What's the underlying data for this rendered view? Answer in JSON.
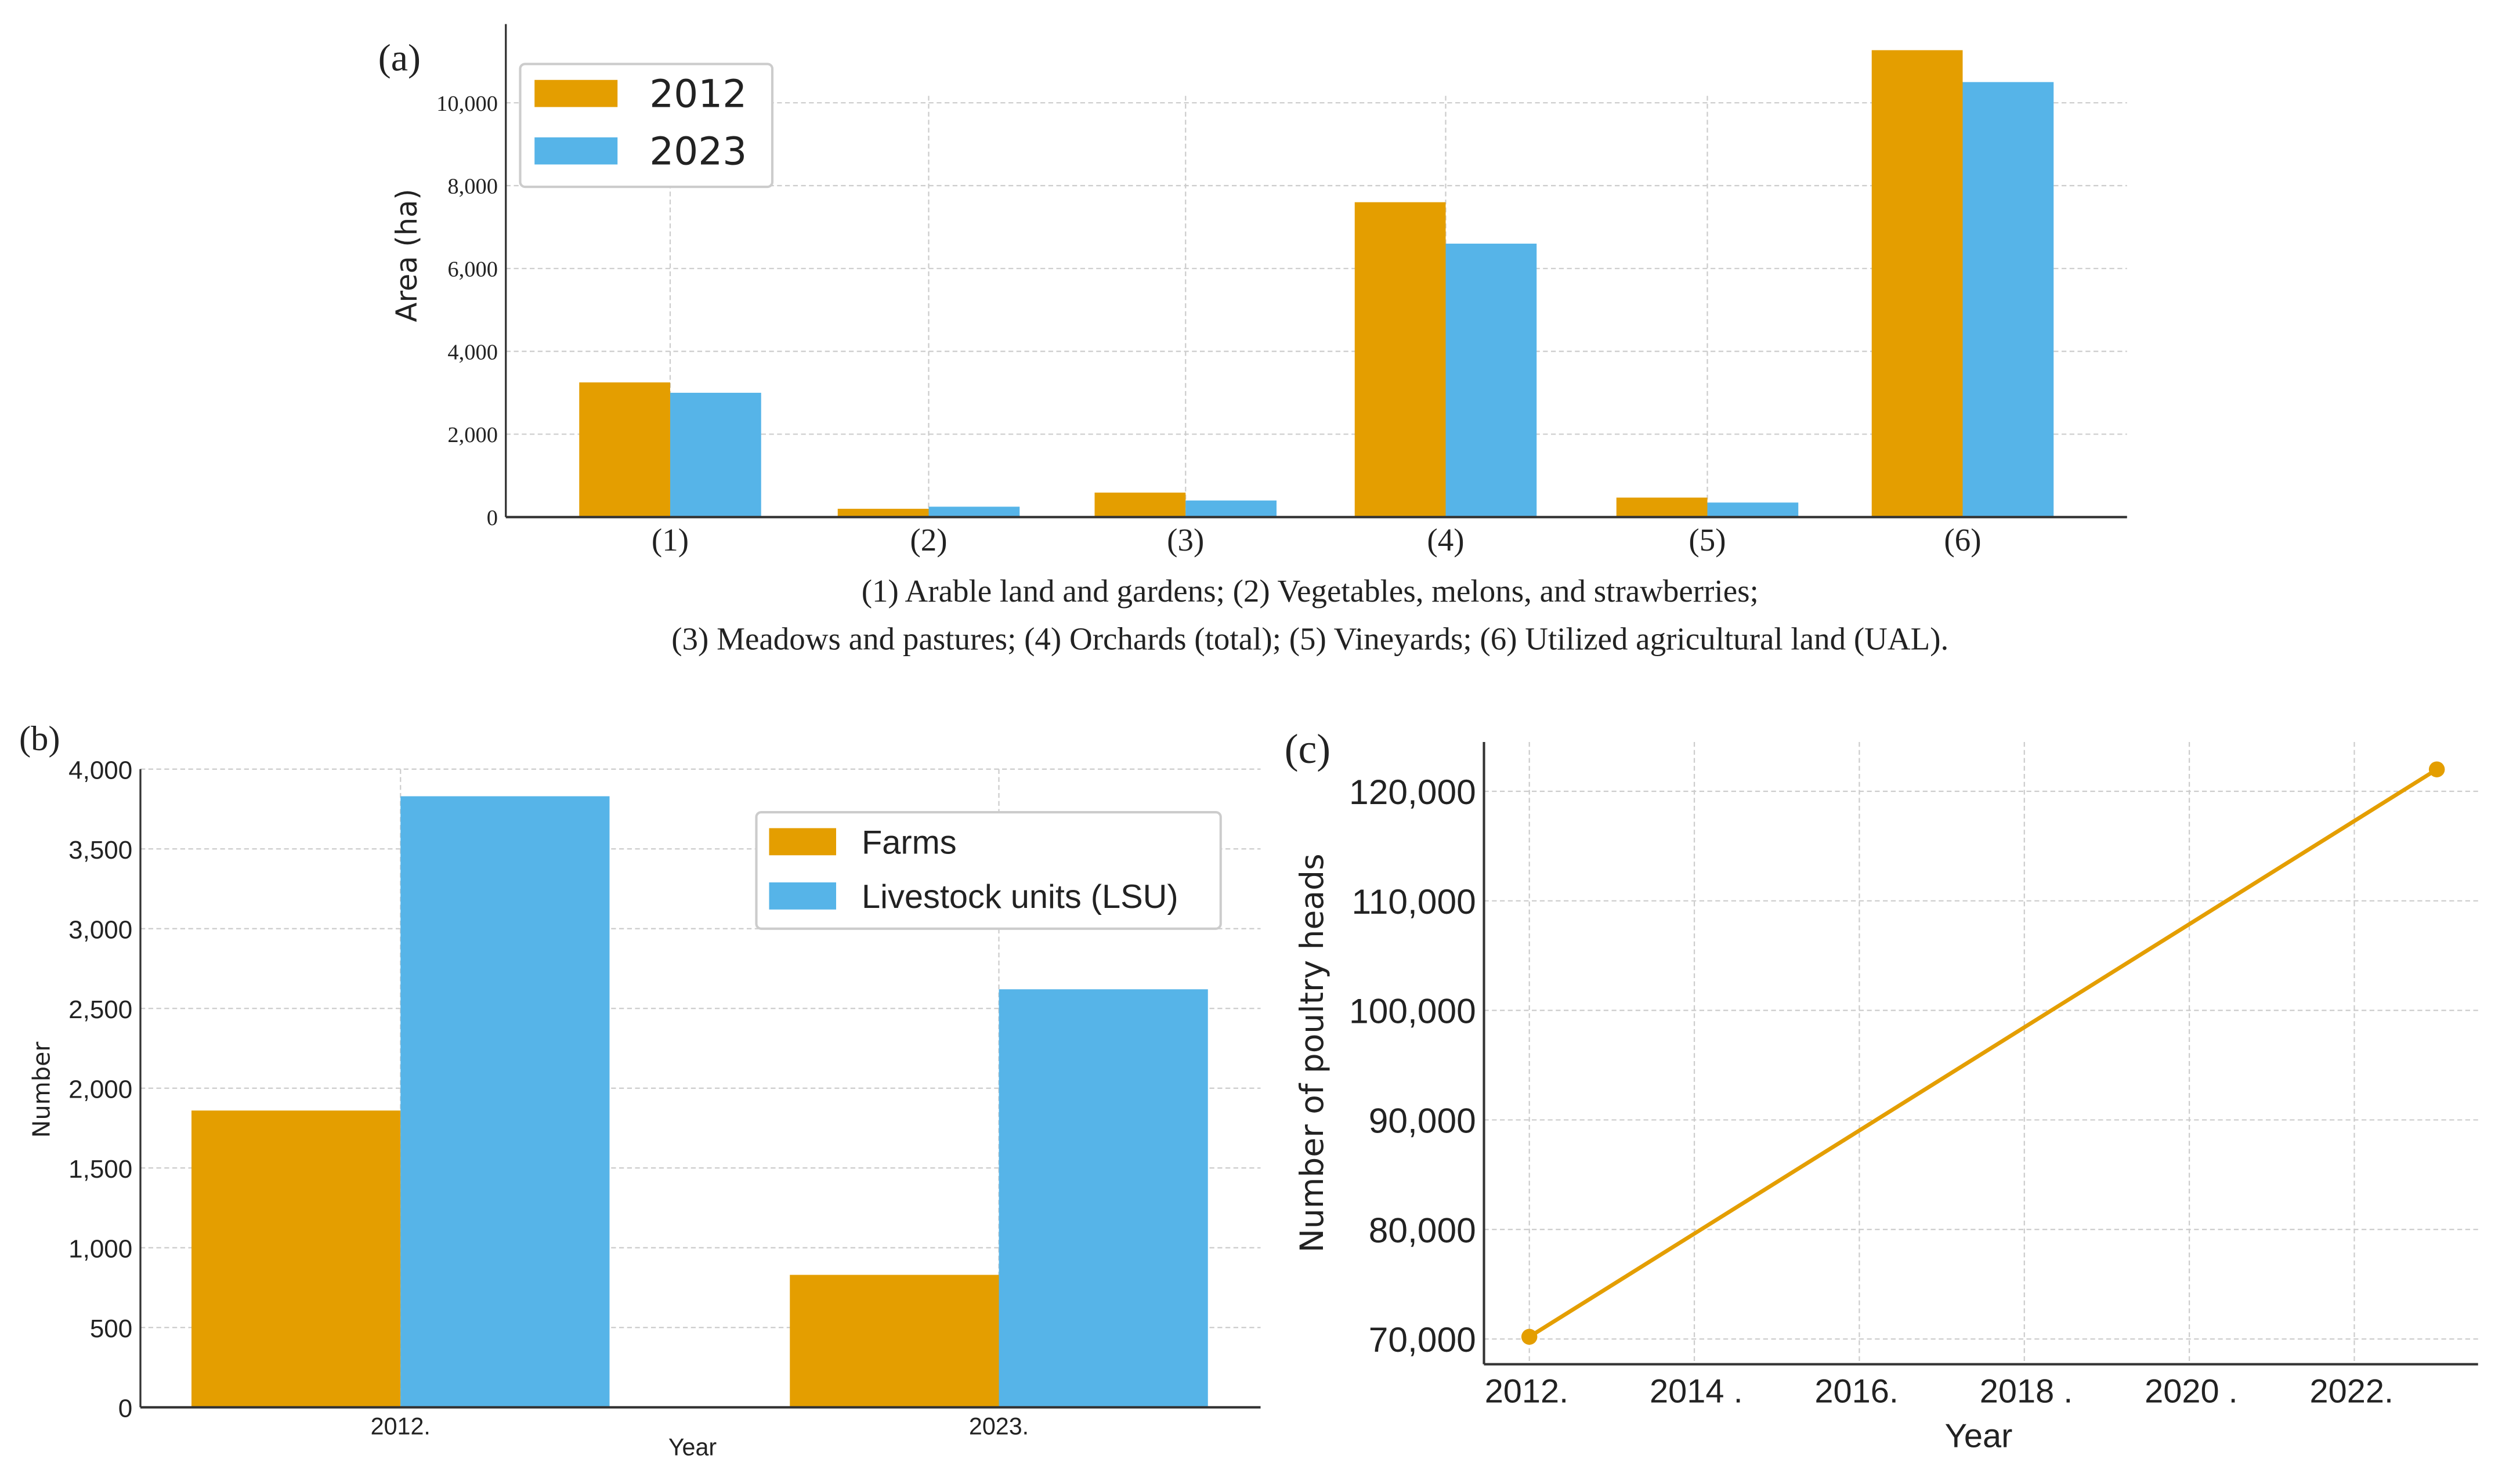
{
  "colors": {
    "orange": "#E49E00",
    "blue": "#56B4E8",
    "axis": "#333333",
    "grid": "#cccccc"
  },
  "caption": {
    "line1": "(1) Arable land and gardens; (2) Vegetables, melons, and strawberries;",
    "line2": "(3) Meadows and pastures; (4) Orchards (total); (5) Vineyards; (6) Utilized agricultural land (UAL)."
  },
  "chart_data": [
    {
      "panel": "(a)",
      "type": "bar",
      "title": "",
      "xlabel": "",
      "ylabel": "Area (ha)",
      "categories": [
        "(1)",
        "(2)",
        "(3)",
        "(4)",
        "(5)",
        "(6)"
      ],
      "series": [
        {
          "name": "2012",
          "color": "#E49E00",
          "values": [
            3250,
            200,
            590,
            7600,
            470,
            11270
          ]
        },
        {
          "name": "2023",
          "color": "#56B4E8",
          "values": [
            3000,
            250,
            400,
            6600,
            350,
            10500
          ]
        }
      ],
      "yticks": [
        0,
        2000,
        4000,
        6000,
        8000,
        10000
      ],
      "ytick_labels": [
        "0",
        "2,000",
        "4,000",
        "6,000",
        "8,000",
        "10,000"
      ],
      "ylim": [
        0,
        11900
      ],
      "grid": true,
      "legend": "top-left"
    },
    {
      "panel": "(b)",
      "type": "bar",
      "title": "",
      "xlabel": "Year",
      "ylabel": "Number",
      "categories": [
        "2012.",
        "2023."
      ],
      "series": [
        {
          "name": "Farms",
          "color": "#E49E00",
          "values": [
            1860,
            830
          ]
        },
        {
          "name": "Livestock units (LSU)",
          "color": "#56B4E8",
          "values": [
            3830,
            2620
          ]
        }
      ],
      "yticks": [
        0,
        500,
        1000,
        1500,
        2000,
        2500,
        3000,
        3500,
        4000
      ],
      "ytick_labels": [
        "0",
        "500",
        "1,000",
        "1,500",
        "2,000",
        "2,500",
        "3,000",
        "3,500",
        "4,000"
      ],
      "ylim": [
        0,
        4000
      ],
      "grid": true,
      "legend": "top-right"
    },
    {
      "panel": "(c)",
      "type": "line",
      "title": "",
      "xlabel": "Year",
      "ylabel": "Number of poultry heads",
      "x": [
        2012,
        2023
      ],
      "series": [
        {
          "name": "Poultry",
          "color": "#E49E00",
          "values": [
            70200,
            122000
          ]
        }
      ],
      "xticks": [
        2012,
        2014,
        2016,
        2018,
        2020,
        2022
      ],
      "xtick_labels": [
        "2012.",
        "2014 .",
        "2016.",
        "2018 .",
        "2020  .",
        "2022."
      ],
      "yticks": [
        70000,
        80000,
        90000,
        100000,
        110000,
        120000
      ],
      "ytick_labels": [
        "70,000",
        "80,000",
        "90,000",
        "100,000",
        "110,000",
        "120,000"
      ],
      "xlim": [
        2011.45,
        2023.5
      ],
      "ylim": [
        67700,
        124500
      ],
      "grid": true,
      "legend": "none"
    }
  ]
}
